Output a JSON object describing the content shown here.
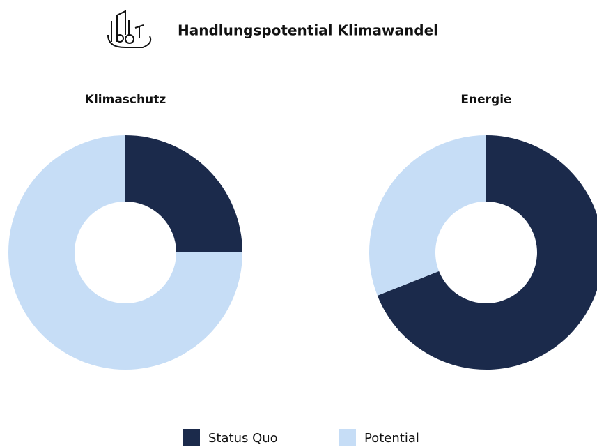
{
  "title": "Handlungspotential Klimawandel",
  "chart_data": [
    {
      "type": "pie",
      "title": "Klimaschutz",
      "categories": [
        "Status Quo",
        "Potential"
      ],
      "values": [
        25,
        75
      ],
      "colors": [
        "#1b2a4b",
        "#c6ddf6"
      ],
      "donut": true
    },
    {
      "type": "pie",
      "title": "Energie",
      "categories": [
        "Status Quo",
        "Potential"
      ],
      "values": [
        69,
        31
      ],
      "colors": [
        "#1b2a4b",
        "#c6ddf6"
      ],
      "donut": true
    }
  ]
}
